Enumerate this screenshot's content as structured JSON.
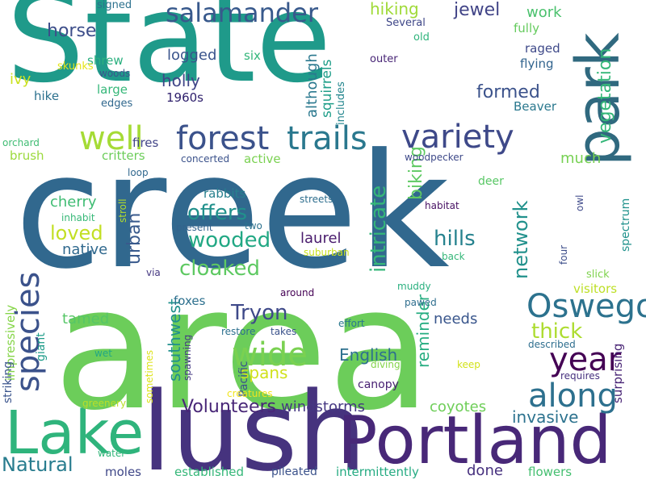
{
  "word_cloud": {
    "words": [
      {
        "text": "State",
        "color": "#1f9a8a"
      },
      {
        "text": "creek",
        "color": "#31688e"
      },
      {
        "text": "area",
        "color": "#6ccd5a"
      },
      {
        "text": "lush",
        "color": "#46337e"
      },
      {
        "text": "Portland",
        "color": "#482878"
      },
      {
        "text": "park",
        "color": "#30697f"
      },
      {
        "text": "Lake",
        "color": "#2fb47c"
      },
      {
        "text": "forest",
        "color": "#3b528b"
      },
      {
        "text": "trails",
        "color": "#2a788e"
      },
      {
        "text": "variety",
        "color": "#3e4989"
      },
      {
        "text": "well",
        "color": "#a5db36"
      },
      {
        "text": "species",
        "color": "#3b528b"
      },
      {
        "text": "Oswego",
        "color": "#2c728e"
      },
      {
        "text": "wide",
        "color": "#7ad151"
      },
      {
        "text": "year",
        "color": "#440154"
      },
      {
        "text": "along",
        "color": "#2d708e"
      },
      {
        "text": "salamander",
        "color": "#38598c"
      },
      {
        "text": "offers",
        "color": "#21918c"
      },
      {
        "text": "cloaked",
        "color": "#5ec962"
      },
      {
        "text": "wooded",
        "color": "#22a884"
      },
      {
        "text": "hills",
        "color": "#26828e"
      },
      {
        "text": "Tryon",
        "color": "#3e4989"
      },
      {
        "text": "thick",
        "color": "#addc30"
      },
      {
        "text": "intricate",
        "color": "#35b779"
      },
      {
        "text": "network",
        "color": "#21918c"
      },
      {
        "text": "vegetation",
        "color": "#35b779"
      },
      {
        "text": "Natural",
        "color": "#287c8e"
      },
      {
        "text": "Volunteers",
        "color": "#482677"
      },
      {
        "text": "invasive",
        "color": "#2c728e"
      },
      {
        "text": "southwest",
        "color": "#21908d"
      },
      {
        "text": "reminder",
        "color": "#27ad81"
      },
      {
        "text": "loved",
        "color": "#c2df23"
      },
      {
        "text": "horse",
        "color": "#3d4e8a"
      },
      {
        "text": "jewel",
        "color": "#414487"
      },
      {
        "text": "formed",
        "color": "#3b528b"
      },
      {
        "text": "urban",
        "color": "#38598c"
      },
      {
        "text": "biking",
        "color": "#5ec962"
      },
      {
        "text": "English",
        "color": "#2d708e"
      },
      {
        "text": "spans",
        "color": "#d0e11c"
      },
      {
        "text": "holly",
        "color": "#404588"
      },
      {
        "text": "hiking",
        "color": "#a0da39"
      },
      {
        "text": "laurel",
        "color": "#481a6c"
      },
      {
        "text": "cherry",
        "color": "#3fbc73"
      },
      {
        "text": "tamed",
        "color": "#56c667"
      },
      {
        "text": "needs",
        "color": "#39568c"
      },
      {
        "text": "much",
        "color": "#77d153"
      },
      {
        "text": "although",
        "color": "#2a788e"
      },
      {
        "text": "squirrels",
        "color": "#1f9e89"
      },
      {
        "text": "work",
        "color": "#4ac16d"
      },
      {
        "text": "logged",
        "color": "#3a548c"
      },
      {
        "text": "native",
        "color": "#30698e"
      },
      {
        "text": "coyotes",
        "color": "#6ece58"
      },
      {
        "text": "windstorms",
        "color": "#453781"
      },
      {
        "text": "done",
        "color": "#46307e"
      },
      {
        "text": "moles",
        "color": "#3f4788"
      },
      {
        "text": "established",
        "color": "#35b779"
      },
      {
        "text": "intermittently",
        "color": "#25ab82"
      },
      {
        "text": "flowers",
        "color": "#44bf70"
      },
      {
        "text": "pileated",
        "color": "#3b528b"
      },
      {
        "text": "Beaver",
        "color": "#2a788e"
      },
      {
        "text": "raged",
        "color": "#3e4989"
      },
      {
        "text": "flying",
        "color": "#32648e"
      },
      {
        "text": "fully",
        "color": "#65cb5e"
      },
      {
        "text": "ivy",
        "color": "#cae11f"
      },
      {
        "text": "hike",
        "color": "#2c718e"
      },
      {
        "text": "shrew",
        "color": "#2ab07f"
      },
      {
        "text": "skunks",
        "color": "#e5e419"
      },
      {
        "text": "brush",
        "color": "#9bd93c"
      },
      {
        "text": "critters",
        "color": "#6ccd5a"
      },
      {
        "text": "fires",
        "color": "#414487"
      },
      {
        "text": "deer",
        "color": "#58c765"
      },
      {
        "text": "active",
        "color": "#7ad151"
      },
      {
        "text": "rabbits",
        "color": "#27808e"
      },
      {
        "text": "Pacific",
        "color": "#3b528b"
      },
      {
        "text": "foxes",
        "color": "#2d708e"
      },
      {
        "text": "impressively",
        "color": "#86d549"
      },
      {
        "text": "striking",
        "color": "#3a548c"
      },
      {
        "text": "giant",
        "color": "#1e9c89"
      },
      {
        "text": "canopy",
        "color": "#482173"
      },
      {
        "text": "visitors",
        "color": "#bddf26"
      },
      {
        "text": "surprising",
        "color": "#482475"
      },
      {
        "text": "spectrum",
        "color": "#20928c"
      },
      {
        "text": "slick",
        "color": "#7fd34e"
      },
      {
        "text": "large",
        "color": "#35b779"
      },
      {
        "text": "1960s",
        "color": "#2d1e6b"
      },
      {
        "text": "edges",
        "color": "#31688e"
      },
      {
        "text": "includes",
        "color": "#24868e"
      },
      {
        "text": "outer",
        "color": "#482576"
      },
      {
        "text": "old",
        "color": "#2fb47c"
      },
      {
        "text": "Several",
        "color": "#3f4788"
      },
      {
        "text": "signed",
        "color": "#2c718e"
      },
      {
        "text": "six",
        "color": "#32b67a"
      },
      {
        "text": "woods",
        "color": "#39568c"
      },
      {
        "text": "orchard",
        "color": "#3fbc73"
      },
      {
        "text": "loop",
        "color": "#31688e"
      },
      {
        "text": "concerted",
        "color": "#3b528b"
      },
      {
        "text": "woodpecker",
        "color": "#3e4989"
      },
      {
        "text": "inhabit",
        "color": "#37b878"
      },
      {
        "text": "stroll",
        "color": "#b5de2b"
      },
      {
        "text": "present",
        "color": "#33638d"
      },
      {
        "text": "two",
        "color": "#2c718e"
      },
      {
        "text": "streets",
        "color": "#2e6e8e"
      },
      {
        "text": "habitat",
        "color": "#471063"
      },
      {
        "text": "suburban",
        "color": "#c8e020"
      },
      {
        "text": "back",
        "color": "#35b779"
      },
      {
        "text": "owl",
        "color": "#3f4a8a"
      },
      {
        "text": "four",
        "color": "#3d4e8a"
      },
      {
        "text": "via",
        "color": "#453882"
      },
      {
        "text": "around",
        "color": "#440154"
      },
      {
        "text": "muddy",
        "color": "#2ab07f"
      },
      {
        "text": "pawed",
        "color": "#2e6e8e"
      },
      {
        "text": "restore",
        "color": "#2d708e"
      },
      {
        "text": "takes",
        "color": "#3b528b"
      },
      {
        "text": "effort",
        "color": "#2a788e"
      },
      {
        "text": "diving",
        "color": "#84d44b"
      },
      {
        "text": "keep",
        "color": "#d2e21b"
      },
      {
        "text": "described",
        "color": "#2e6e8e"
      },
      {
        "text": "requires",
        "color": "#46307e"
      },
      {
        "text": "spawning",
        "color": "#443983"
      },
      {
        "text": "wet",
        "color": "#22a884"
      },
      {
        "text": "sometimes",
        "color": "#dde318"
      },
      {
        "text": "creatures",
        "color": "#f1e51d"
      },
      {
        "text": "greenery",
        "color": "#bade28"
      },
      {
        "text": "water",
        "color": "#32b67a"
      }
    ]
  }
}
